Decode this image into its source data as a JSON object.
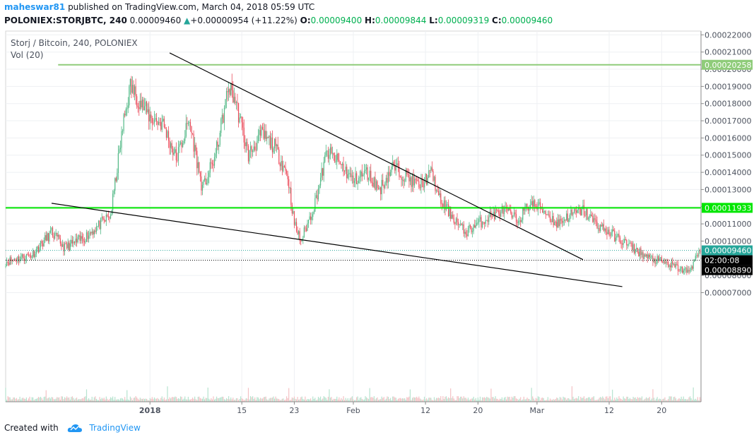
{
  "header": {
    "author": "maheswar81",
    "published": "published on TradingView.com, March 04, 2018 05:59 UTC",
    "symbol": "POLONIEX:STORJBTC, 240",
    "last": "0.00009460",
    "arrow": "▲",
    "change": "+0.00000954 (+11.22%)",
    "o_label": "O:",
    "o_value": "0.00009400",
    "h_label": "H:",
    "h_value": "0.00009844",
    "l_label": "L:",
    "l_value": "0.00009319",
    "c_label": "C:",
    "c_value": "0.00009460"
  },
  "legend": {
    "title": "Storj / Bitcoin, 240, POLONIEX",
    "volume": "Vol (20)"
  },
  "footer": {
    "created": "Created with",
    "brand": "TradingView"
  },
  "colors": {
    "up": "#26a69a",
    "down": "#ef5350",
    "up_candle": "#53b987",
    "down_candle": "#eb4d5c",
    "horizontal_bright": "#00e600",
    "horizontal_pale": "#8fcc7a",
    "last_line": "#26a69a",
    "brand": "#2196f3"
  },
  "chart_data": {
    "type": "candlestick",
    "ylim": [
      6.5e-06,
      0.0002222
    ],
    "y_ticks": [
      "0.00022000",
      "0.00021000",
      "0.00020000",
      "0.00019000",
      "0.00018000",
      "0.00017000",
      "0.00016000",
      "0.00015000",
      "0.00014000",
      "0.00013000",
      "0.00012000",
      "0.00011000",
      "0.00010000",
      "0.00009000",
      "0.00008000",
      "0.00007000"
    ],
    "x_ticks": [
      "2018",
      "15",
      "23",
      "Feb",
      "12",
      "20",
      "Mar",
      "12",
      "20"
    ],
    "x_tick_dates": [
      "2018-01-01",
      "2018-01-15",
      "2018-01-23",
      "2018-02-01",
      "2018-02-12",
      "2018-02-20",
      "2018-03-01",
      "2018-03-12",
      "2018-03-20"
    ],
    "x_range": [
      "2017-12-10",
      "2018-03-26"
    ],
    "price_labels": [
      {
        "text": "0.00020258",
        "value": 0.00020258,
        "color": "#8fcc7a"
      },
      {
        "text": "0.00011933",
        "value": 0.00011933,
        "color": "#00e600"
      },
      {
        "text": "0.00009460",
        "value": 9.46e-05,
        "color": "#26a69a"
      },
      {
        "text": "02:00:08",
        "value": 8.89e-05,
        "color": "#000000"
      },
      {
        "text": "0.00008890",
        "value": 8.89e-05,
        "color": "#000000"
      }
    ],
    "horizontal_lines": [
      {
        "value": 0.00020258,
        "from": "2017-12-18",
        "color": "#8fcc7a"
      },
      {
        "value": 0.00011933,
        "from": "2017-12-10",
        "color": "#00e600"
      },
      {
        "value": 9.46e-05,
        "from": "2017-12-10",
        "color": "#26a69a",
        "style": "dotted"
      },
      {
        "value": 8.89e-05,
        "from": "2017-12-10",
        "color": "#000000",
        "style": "dotted"
      }
    ],
    "trendlines": [
      {
        "from": [
          "2018-01-04",
          0.0002095
        ],
        "to": [
          "2018-03-08",
          8.92e-05
        ]
      },
      {
        "from": [
          "2017-12-17",
          0.000122
        ],
        "to": [
          "2018-03-14",
          7.35e-05
        ]
      }
    ],
    "price_path": [
      [
        "2017-12-10",
        8.8e-05
      ],
      [
        "2017-12-14",
        9.2e-05
      ],
      [
        "2017-12-17",
        0.000105
      ],
      [
        "2017-12-19",
        9.6e-05
      ],
      [
        "2017-12-22",
        0.000102
      ],
      [
        "2017-12-26",
        0.000115
      ],
      [
        "2017-12-28",
        0.00017
      ],
      [
        "2017-12-29",
        0.00019
      ],
      [
        "2018-01-01",
        0.000172
      ],
      [
        "2018-01-03",
        0.000168
      ],
      [
        "2018-01-05",
        0.000148
      ],
      [
        "2018-01-07",
        0.00017
      ],
      [
        "2018-01-09",
        0.00013
      ],
      [
        "2018-01-11",
        0.00015
      ],
      [
        "2018-01-13",
        0.00019
      ],
      [
        "2018-01-14",
        0.000182
      ],
      [
        "2018-01-16",
        0.00015
      ],
      [
        "2018-01-18",
        0.000162
      ],
      [
        "2018-01-20",
        0.000155
      ],
      [
        "2018-01-22",
        0.000138
      ],
      [
        "2018-01-23",
        0.00011
      ],
      [
        "2018-01-24",
        0.0001
      ],
      [
        "2018-01-26",
        0.00012
      ],
      [
        "2018-01-28",
        0.000152
      ],
      [
        "2018-01-30",
        0.000145
      ],
      [
        "2018-02-01",
        0.000135
      ],
      [
        "2018-02-03",
        0.00014
      ],
      [
        "2018-02-05",
        0.00013
      ],
      [
        "2018-02-07",
        0.000143
      ],
      [
        "2018-02-09",
        0.000138
      ],
      [
        "2018-02-11",
        0.000132
      ],
      [
        "2018-02-13",
        0.00014
      ],
      [
        "2018-02-14",
        0.000125
      ],
      [
        "2018-02-16",
        0.000115
      ],
      [
        "2018-02-18",
        0.000105
      ],
      [
        "2018-02-20",
        0.00011
      ],
      [
        "2018-02-22",
        0.000115
      ],
      [
        "2018-02-24",
        0.000118
      ],
      [
        "2018-02-26",
        0.000112
      ],
      [
        "2018-02-28",
        0.000122
      ],
      [
        "2018-03-02",
        0.000118
      ],
      [
        "2018-03-04",
        0.00011
      ],
      [
        "2018-03-06",
        0.000115
      ],
      [
        "2018-03-08",
        0.000118
      ],
      [
        "2018-03-10",
        0.00011
      ],
      [
        "2018-03-12",
        0.000105
      ],
      [
        "2018-03-14",
        0.0001
      ],
      [
        "2018-03-16",
        9.5e-05
      ],
      [
        "2018-03-18",
        9e-05
      ],
      [
        "2018-03-20",
        8.8e-05
      ],
      [
        "2018-03-22",
        8.5e-05
      ],
      [
        "2018-03-24",
        8.2e-05
      ],
      [
        "2018-03-26",
        9.46e-05
      ]
    ]
  }
}
